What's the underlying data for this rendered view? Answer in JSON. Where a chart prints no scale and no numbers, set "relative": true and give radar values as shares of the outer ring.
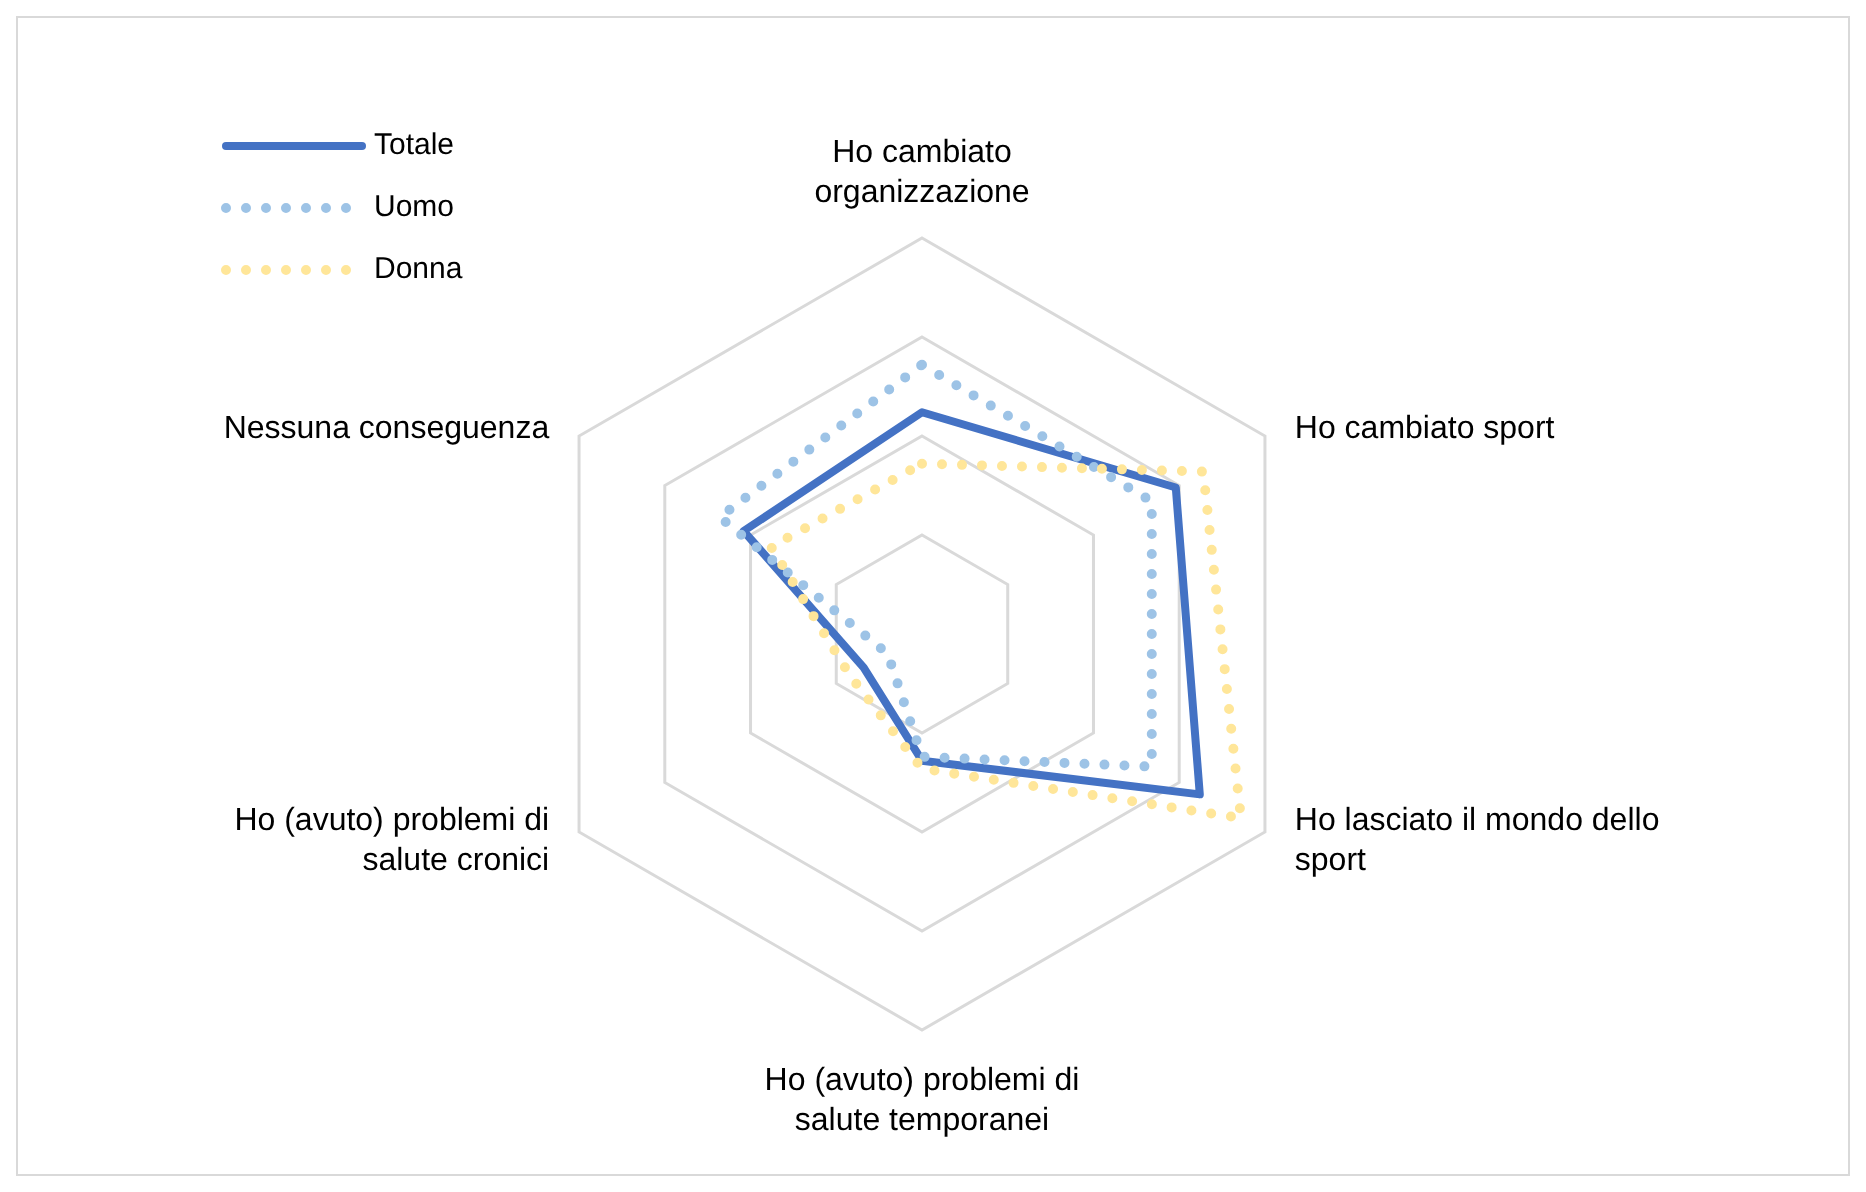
{
  "chart_data": {
    "type": "radar",
    "relative": true,
    "grid": true,
    "legend": "top left",
    "categories": [
      "Ho cambiato organizzazione",
      "Ho cambiato sport",
      "Ho lasciato il mondo dello sport",
      "Ho (avuto) problemi di salute temporanei",
      "Ho (avuto) problemi di salute cronici",
      "Nessuna conseguenza"
    ],
    "series": [
      {
        "name": "Totale",
        "color": "#4472c4",
        "line_style": "solid",
        "values": [
          0.56,
          0.74,
          0.81,
          0.32,
          0.17,
          0.52
        ]
      },
      {
        "name": "Uomo",
        "color": "#9dc3e6",
        "line_style": "dotted",
        "values": [
          0.68,
          0.67,
          0.67,
          0.31,
          0.1,
          0.59
        ]
      },
      {
        "name": "Donna",
        "color": "#ffe699",
        "line_style": "dotted",
        "values": [
          0.43,
          0.82,
          0.93,
          0.34,
          0.21,
          0.44
        ]
      }
    ]
  }
}
